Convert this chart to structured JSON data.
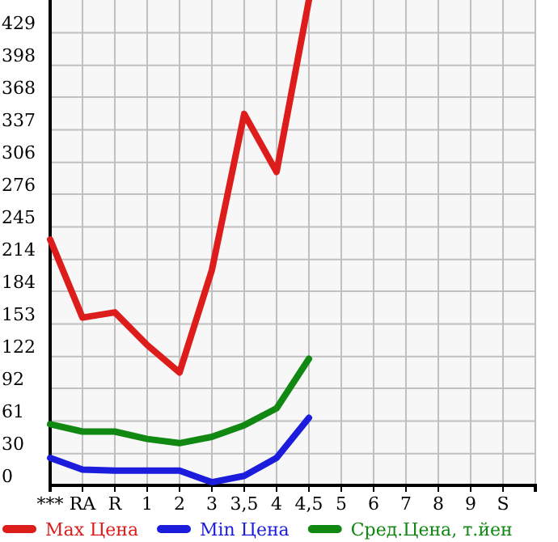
{
  "chart_data": {
    "type": "line",
    "categories": [
      "***",
      "RA",
      "R",
      "1",
      "2",
      "3",
      "3,5",
      "4",
      "4,5",
      "5",
      "6",
      "7",
      "8",
      "9",
      "S"
    ],
    "ylim": [
      0,
      460
    ],
    "yticks": [
      0,
      30,
      61,
      92,
      122,
      153,
      184,
      214,
      245,
      276,
      306,
      337,
      368,
      398,
      429
    ],
    "grid": true,
    "legend": "bottom",
    "series": [
      {
        "name": "Max Цена",
        "color": "#dd1c1c",
        "values": [
          233,
          159,
          164,
          133,
          107,
          204,
          352,
          297,
          460,
          null,
          null,
          null,
          null,
          null,
          null
        ]
      },
      {
        "name": "Min Цена",
        "color": "#1c1cdd",
        "values": [
          26,
          15,
          14,
          14,
          14,
          3,
          9,
          26,
          64,
          null,
          null,
          null,
          null,
          null,
          null
        ]
      },
      {
        "name": "Сред.Цена, т.йен",
        "color": "#118811",
        "values": [
          58,
          51,
          51,
          44,
          40,
          46,
          57,
          73,
          120,
          null,
          null,
          null,
          null,
          null,
          null
        ]
      }
    ]
  }
}
